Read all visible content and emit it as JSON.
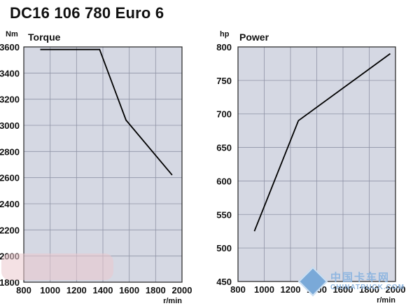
{
  "title": "DC16 106 780 Euro 6",
  "chart_data": [
    {
      "type": "line",
      "title": "Torque",
      "ylabel": "Nm",
      "xlabel": "r/min",
      "xlim": [
        800,
        2000
      ],
      "ylim": [
        1800,
        3600
      ],
      "xticks": [
        "800",
        "1000",
        "1200",
        "1400",
        "1600",
        "1800",
        "2000"
      ],
      "yticks": [
        "1800",
        "2000",
        "2200",
        "2400",
        "2600",
        "2800",
        "3000",
        "3200",
        "3400",
        "3600"
      ],
      "grid": true,
      "series": [
        {
          "x": [
            925,
            1375,
            1575,
            1925
          ],
          "y": [
            3580,
            3580,
            3040,
            2620
          ]
        }
      ]
    },
    {
      "type": "line",
      "title": "Power",
      "ylabel": "hp",
      "xlabel": "r/min",
      "xlim": [
        800,
        2000
      ],
      "ylim": [
        450,
        800
      ],
      "xticks": [
        "800",
        "1000",
        "1200",
        "1400",
        "1600",
        "1800",
        "2000"
      ],
      "yticks": [
        "450",
        "500",
        "550",
        "600",
        "650",
        "700",
        "750",
        "800"
      ],
      "grid": true,
      "series": [
        {
          "x": [
            925,
            1260,
            1960
          ],
          "y": [
            525,
            690,
            790
          ]
        }
      ]
    }
  ],
  "watermark": {
    "cn": "中国卡车网",
    "en": "CHINATRUCK.COM"
  }
}
